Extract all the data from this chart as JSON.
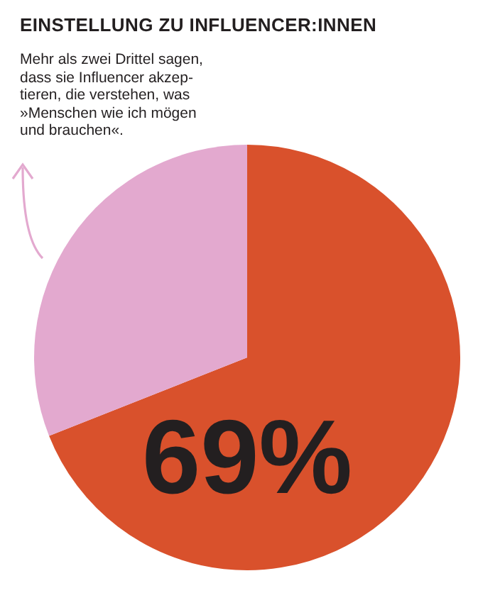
{
  "chart_data": {
    "type": "pie",
    "title": "EINSTELLUNG ZU INFLUENCER:INNEN",
    "annotations": [
      "Mehr als zwei Drittel sagen,\ndass sie Influencer akzep-\ntieren, die verstehen, was\n»Menschen wie ich mögen\nund brauchen«."
    ],
    "categories": [
      null,
      null
    ],
    "values": [
      69,
      31
    ],
    "colors": [
      "#d9512c",
      "#e3a9cf"
    ],
    "value_labels": [
      "69%",
      null
    ],
    "legend": false
  }
}
